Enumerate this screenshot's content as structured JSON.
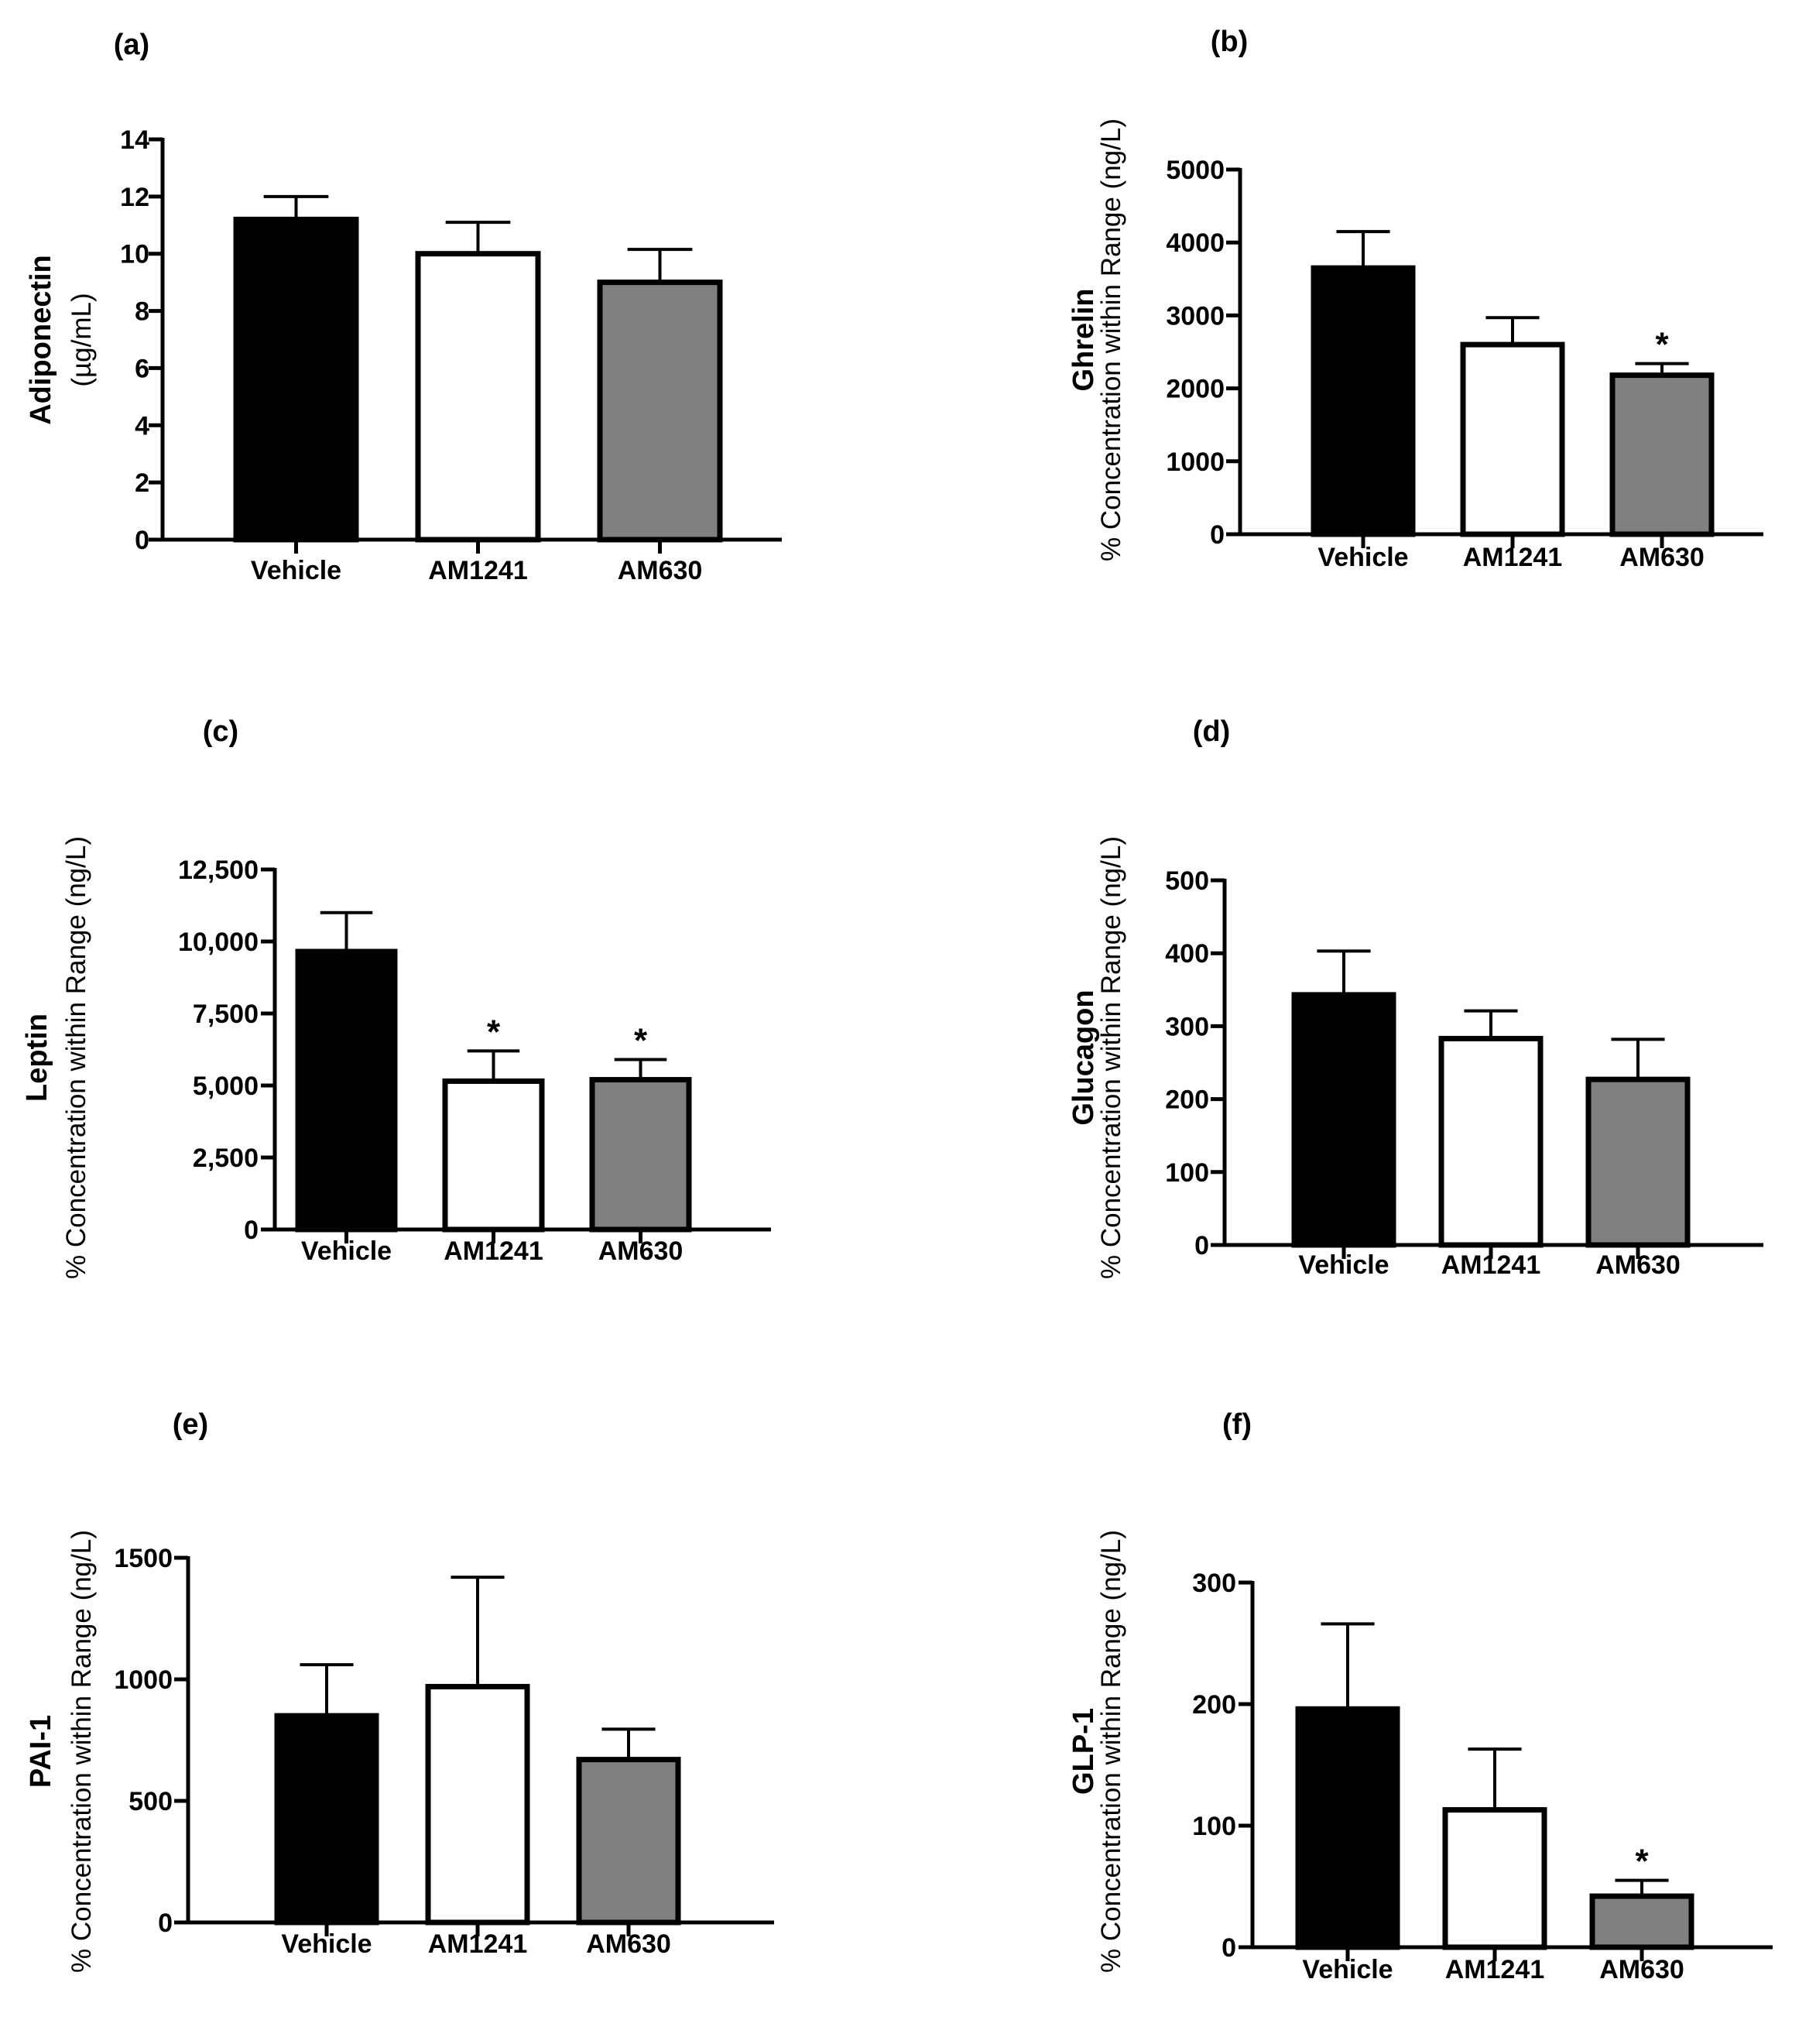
{
  "colors": {
    "vehicle": "#000000",
    "am1241": "#ffffff",
    "am630": "#808080",
    "stroke": "#000000"
  },
  "chart_data": [
    {
      "type": "bar",
      "panel": "(a)",
      "ylabel_bold": "Adiponectin",
      "ylabel": "(µg/mL)",
      "categories": [
        "Vehicle",
        "AM1241",
        "AM630"
      ],
      "values": [
        11.2,
        10.0,
        9.0
      ],
      "errors": [
        0.8,
        1.1,
        1.15
      ],
      "significant": [
        false,
        false,
        false
      ],
      "star": "*",
      "ylim": [
        0,
        14
      ],
      "ticks": [
        0,
        2,
        4,
        6,
        8,
        10,
        12,
        14
      ],
      "tick_labels": [
        "0",
        "2",
        "4",
        "6",
        "8",
        "10",
        "12",
        "14"
      ]
    },
    {
      "type": "bar",
      "panel": "(b)",
      "ylabel_bold": "Ghrelin",
      "ylabel": "% Concentration within Range (ng/L)",
      "categories": [
        "Vehicle",
        "AM1241",
        "AM630"
      ],
      "values": [
        3650,
        2600,
        2180
      ],
      "errors": [
        500,
        370,
        160
      ],
      "significant": [
        false,
        false,
        true
      ],
      "star": "*",
      "ylim": [
        0,
        5000
      ],
      "ticks": [
        0,
        1000,
        2000,
        3000,
        4000,
        5000
      ],
      "tick_labels": [
        "0",
        "1000",
        "2000",
        "3000",
        "4000",
        "5000"
      ]
    },
    {
      "type": "bar",
      "panel": "(c)",
      "ylabel_bold": "Leptin",
      "ylabel": "% Concentration within Range (ng/L)",
      "categories": [
        "Vehicle",
        "AM1241",
        "AM630"
      ],
      "values": [
        9650,
        5150,
        5200
      ],
      "errors": [
        1350,
        1050,
        700
      ],
      "significant": [
        false,
        true,
        true
      ],
      "star": "*",
      "ylim": [
        0,
        12500
      ],
      "ticks": [
        0,
        2500,
        5000,
        7500,
        10000,
        12500
      ],
      "tick_labels": [
        "0",
        "2,500",
        "5,000",
        "7,500",
        "10,000",
        "12,500"
      ]
    },
    {
      "type": "bar",
      "panel": "(d)",
      "ylabel_bold": "Glucagon",
      "ylabel": "% Concentration within Range (ng/L)",
      "categories": [
        "Vehicle",
        "AM1241",
        "AM630"
      ],
      "values": [
        343,
        283,
        227
      ],
      "errors": [
        60,
        38,
        55
      ],
      "significant": [
        false,
        false,
        false
      ],
      "star": "*",
      "ylim": [
        0,
        500
      ],
      "ticks": [
        0,
        100,
        200,
        300,
        400,
        500
      ],
      "tick_labels": [
        "0",
        "100",
        "200",
        "300",
        "400",
        "500"
      ]
    },
    {
      "type": "bar",
      "panel": "(e)",
      "ylabel_bold": "PAI-1",
      "ylabel": "% Concentration within Range (ng/L)",
      "categories": [
        "Vehicle",
        "AM1241",
        "AM630"
      ],
      "values": [
        850,
        970,
        670
      ],
      "errors": [
        210,
        450,
        125
      ],
      "significant": [
        false,
        false,
        false
      ],
      "star": "*",
      "ylim": [
        0,
        1500
      ],
      "ticks": [
        0,
        500,
        1000,
        1500
      ],
      "tick_labels": [
        "0",
        "500",
        "1000",
        "1500"
      ]
    },
    {
      "type": "bar",
      "panel": "(f)",
      "ylabel_bold": "GLP-1",
      "ylabel": "% Concentration within Range (ng/L)",
      "categories": [
        "Vehicle",
        "AM1241",
        "AM630"
      ],
      "values": [
        196,
        113,
        42
      ],
      "errors": [
        70,
        50,
        13
      ],
      "significant": [
        false,
        false,
        true
      ],
      "star": "*",
      "ylim": [
        0,
        300
      ],
      "ticks": [
        0,
        100,
        200,
        300
      ],
      "tick_labels": [
        "0",
        "100",
        "200",
        "300"
      ]
    }
  ]
}
